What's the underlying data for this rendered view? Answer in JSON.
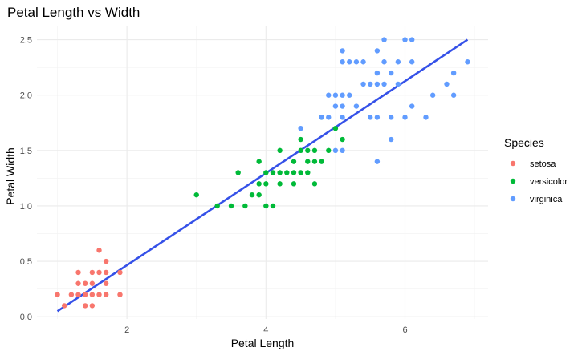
{
  "chart_data": {
    "type": "scatter",
    "title": "Petal Length vs Width",
    "xlabel": "Petal Length",
    "ylabel": "Petal Width",
    "xlim": [
      0.705,
      7.195
    ],
    "ylim": [
      -0.02,
      2.62
    ],
    "x_ticks": [
      2,
      4,
      6
    ],
    "x_tick_labels": [
      "2",
      "4",
      "6"
    ],
    "y_ticks": [
      0,
      0.5,
      1,
      1.5,
      2,
      2.5
    ],
    "y_tick_labels": [
      "0.0",
      "0.5",
      "1.0",
      "1.5",
      "2.0",
      "2.5"
    ],
    "grid": true,
    "legend_title": "Species",
    "legend_position": "right",
    "trend_line": {
      "x": [
        1.0,
        6.9
      ],
      "y": [
        0.05,
        2.5
      ],
      "color": "#3551e8"
    },
    "series": [
      {
        "name": "setosa",
        "color": "#f8766d",
        "points": [
          [
            1.0,
            0.2
          ],
          [
            1.1,
            0.1
          ],
          [
            1.2,
            0.2
          ],
          [
            1.3,
            0.2
          ],
          [
            1.3,
            0.3
          ],
          [
            1.3,
            0.4
          ],
          [
            1.4,
            0.1
          ],
          [
            1.4,
            0.2
          ],
          [
            1.4,
            0.3
          ],
          [
            1.5,
            0.1
          ],
          [
            1.5,
            0.2
          ],
          [
            1.5,
            0.3
          ],
          [
            1.5,
            0.4
          ],
          [
            1.6,
            0.2
          ],
          [
            1.6,
            0.4
          ],
          [
            1.6,
            0.6
          ],
          [
            1.7,
            0.2
          ],
          [
            1.7,
            0.3
          ],
          [
            1.7,
            0.4
          ],
          [
            1.7,
            0.5
          ],
          [
            1.9,
            0.2
          ],
          [
            1.9,
            0.4
          ]
        ]
      },
      {
        "name": "versicolor",
        "color": "#00ba38",
        "points": [
          [
            3.0,
            1.1
          ],
          [
            3.3,
            1.0
          ],
          [
            3.5,
            1.0
          ],
          [
            3.6,
            1.3
          ],
          [
            3.7,
            1.0
          ],
          [
            3.8,
            1.1
          ],
          [
            3.9,
            1.1
          ],
          [
            3.9,
            1.2
          ],
          [
            3.9,
            1.4
          ],
          [
            4.0,
            1.0
          ],
          [
            4.0,
            1.2
          ],
          [
            4.0,
            1.3
          ],
          [
            4.1,
            1.0
          ],
          [
            4.1,
            1.3
          ],
          [
            4.2,
            1.2
          ],
          [
            4.2,
            1.3
          ],
          [
            4.2,
            1.5
          ],
          [
            4.3,
            1.3
          ],
          [
            4.4,
            1.2
          ],
          [
            4.4,
            1.3
          ],
          [
            4.4,
            1.4
          ],
          [
            4.5,
            1.3
          ],
          [
            4.5,
            1.5
          ],
          [
            4.5,
            1.6
          ],
          [
            4.6,
            1.3
          ],
          [
            4.6,
            1.4
          ],
          [
            4.6,
            1.5
          ],
          [
            4.7,
            1.2
          ],
          [
            4.7,
            1.4
          ],
          [
            4.7,
            1.5
          ],
          [
            4.8,
            1.4
          ],
          [
            4.8,
            1.8
          ],
          [
            4.9,
            1.5
          ],
          [
            5.0,
            1.7
          ],
          [
            5.1,
            1.6
          ]
        ]
      },
      {
        "name": "virginica",
        "color": "#619cff",
        "points": [
          [
            4.5,
            1.7
          ],
          [
            4.8,
            1.8
          ],
          [
            4.9,
            1.8
          ],
          [
            4.9,
            2.0
          ],
          [
            5.0,
            1.5
          ],
          [
            5.0,
            1.9
          ],
          [
            5.0,
            2.0
          ],
          [
            5.1,
            1.5
          ],
          [
            5.1,
            1.8
          ],
          [
            5.1,
            1.9
          ],
          [
            5.1,
            2.0
          ],
          [
            5.1,
            2.3
          ],
          [
            5.1,
            2.4
          ],
          [
            5.2,
            2.0
          ],
          [
            5.2,
            2.3
          ],
          [
            5.3,
            1.9
          ],
          [
            5.3,
            2.3
          ],
          [
            5.4,
            2.1
          ],
          [
            5.4,
            2.3
          ],
          [
            5.5,
            1.8
          ],
          [
            5.5,
            2.1
          ],
          [
            5.6,
            1.4
          ],
          [
            5.6,
            1.8
          ],
          [
            5.6,
            2.1
          ],
          [
            5.6,
            2.2
          ],
          [
            5.6,
            2.4
          ],
          [
            5.7,
            2.1
          ],
          [
            5.7,
            2.3
          ],
          [
            5.7,
            2.5
          ],
          [
            5.8,
            1.6
          ],
          [
            5.8,
            1.8
          ],
          [
            5.8,
            2.2
          ],
          [
            5.9,
            2.1
          ],
          [
            5.9,
            2.3
          ],
          [
            6.0,
            1.8
          ],
          [
            6.0,
            2.5
          ],
          [
            6.1,
            1.9
          ],
          [
            6.1,
            2.3
          ],
          [
            6.1,
            2.5
          ],
          [
            6.3,
            1.8
          ],
          [
            6.4,
            2.0
          ],
          [
            6.6,
            2.1
          ],
          [
            6.7,
            2.0
          ],
          [
            6.7,
            2.2
          ],
          [
            6.9,
            2.3
          ]
        ]
      }
    ]
  }
}
